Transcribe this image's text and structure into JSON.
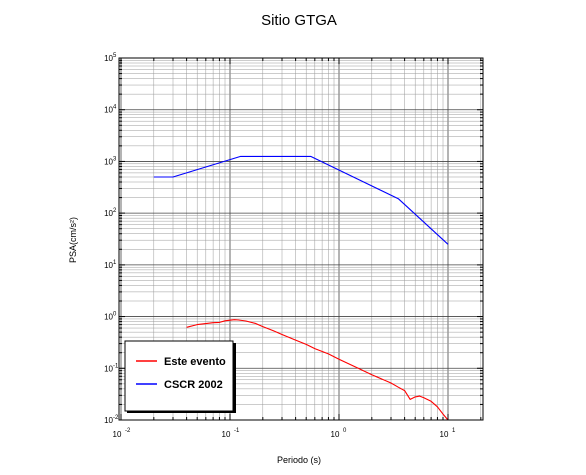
{
  "chart_data": {
    "type": "line",
    "title": "Sitio GTGA",
    "xlabel": "Periodo (s)",
    "ylabel": "PSA(cm/s²)",
    "x_scale": "log",
    "y_scale": "log",
    "xlim": [
      0.01,
      20
    ],
    "ylim": [
      0.01,
      100000
    ],
    "x_ticks": [
      {
        "base": "10",
        "exp": "-2"
      },
      {
        "base": "10",
        "exp": "-1"
      },
      {
        "base": "10",
        "exp": "0"
      },
      {
        "base": "10",
        "exp": "1"
      }
    ],
    "y_ticks": [
      {
        "base": "10",
        "exp": "-2"
      },
      {
        "base": "10",
        "exp": "-1"
      },
      {
        "base": "10",
        "exp": "0"
      },
      {
        "base": "10",
        "exp": "1"
      },
      {
        "base": "10",
        "exp": "2"
      },
      {
        "base": "10",
        "exp": "3"
      },
      {
        "base": "10",
        "exp": "4"
      },
      {
        "base": "10",
        "exp": "5"
      }
    ],
    "grid": true,
    "legend_position": "bottom-left",
    "series": [
      {
        "name": "Este evento",
        "color": "#ff0000",
        "points": [
          [
            0.04,
            0.62
          ],
          [
            0.05,
            0.7
          ],
          [
            0.06,
            0.73
          ],
          [
            0.07,
            0.76
          ],
          [
            0.08,
            0.77
          ],
          [
            0.09,
            0.83
          ],
          [
            0.1,
            0.85
          ],
          [
            0.11,
            0.87
          ],
          [
            0.12,
            0.86
          ],
          [
            0.14,
            0.82
          ],
          [
            0.17,
            0.74
          ],
          [
            0.2,
            0.64
          ],
          [
            0.25,
            0.53
          ],
          [
            0.3,
            0.45
          ],
          [
            0.4,
            0.35
          ],
          [
            0.5,
            0.29
          ],
          [
            0.6,
            0.24
          ],
          [
            0.8,
            0.19
          ],
          [
            1.0,
            0.15
          ],
          [
            1.5,
            0.1
          ],
          [
            2.0,
            0.075
          ],
          [
            3.0,
            0.052
          ],
          [
            3.5,
            0.043
          ],
          [
            4.0,
            0.037
          ],
          [
            4.5,
            0.025
          ],
          [
            5.0,
            0.028
          ],
          [
            5.5,
            0.029
          ],
          [
            6.0,
            0.027
          ],
          [
            7.0,
            0.023
          ],
          [
            8.0,
            0.018
          ],
          [
            9.0,
            0.013
          ],
          [
            10.0,
            0.01
          ]
        ]
      },
      {
        "name": "CSCR 2002",
        "color": "#0000ff",
        "points": [
          [
            0.02,
            500
          ],
          [
            0.03,
            500
          ],
          [
            0.125,
            1250
          ],
          [
            0.55,
            1250
          ],
          [
            3.5,
            190
          ],
          [
            10.0,
            25
          ]
        ]
      }
    ]
  }
}
